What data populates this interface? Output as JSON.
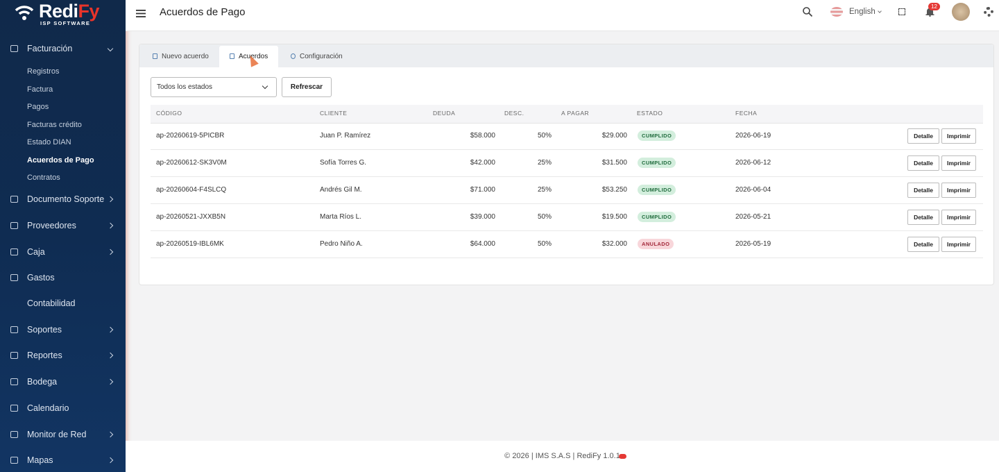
{
  "sidebar": {
    "logo": {
      "part1": "Redi",
      "part2": "Fy",
      "tagline": "ISP SOFTWARE"
    },
    "menu": [
      {
        "label": "Facturación",
        "children": [
          "Registros",
          "Factura",
          "Pagos",
          "Facturas crédito",
          "Estado DIAN",
          "Acuerdos de Pago",
          "Contratos"
        ]
      },
      {
        "label": "Documento Soporte"
      },
      {
        "label": "Proveedores"
      },
      {
        "label": "Caja"
      },
      {
        "label": "Gastos"
      },
      {
        "label": "Contabilidad"
      },
      {
        "label": "Soportes"
      },
      {
        "label": "Reportes"
      },
      {
        "label": "Bodega"
      },
      {
        "label": "Calendario"
      },
      {
        "label": "Monitor de Red"
      },
      {
        "label": "Mapas"
      }
    ]
  },
  "header": {
    "title": "Acuerdos de Pago",
    "language": "English",
    "notifications": "12"
  },
  "tabs": [
    "Nuevo acuerdo",
    "Acuerdos",
    "Configuración"
  ],
  "filters": {
    "select": "Todos los estados",
    "button": "Refrescar"
  },
  "table": {
    "columns": [
      "CÓDIGO",
      "CLIENTE",
      "DEUDA",
      "DESC.",
      "A PAGAR",
      "ESTADO",
      "FECHA"
    ],
    "rows": [
      [
        "ap-20260619-5PICBR",
        "Juan P. Ramírez",
        "$58.000",
        "50%",
        "$29.000",
        "CUMPLIDO",
        "2026-06-19"
      ],
      [
        "ap-20260612-SK3V0M",
        "Sofía Torres G.",
        "$42.000",
        "25%",
        "$31.500",
        "CUMPLIDO",
        "2026-06-12"
      ],
      [
        "ap-20260604-F4SLCQ",
        "Andrés Gil M.",
        "$71.000",
        "25%",
        "$53.250",
        "CUMPLIDO",
        "2026-06-04"
      ],
      [
        "ap-20260521-JXXB5N",
        "Marta Ríos L.",
        "$39.000",
        "50%",
        "$19.500",
        "CUMPLIDO",
        "2026-05-21"
      ],
      [
        "ap-20260519-IBL6MK",
        "Pedro Niño A.",
        "$64.000",
        "50%",
        "$32.000",
        "ANULADO",
        "2026-05-19"
      ]
    ],
    "actions": [
      "Detalle",
      "Imprimir"
    ]
  },
  "footer": "© 2026 | IMS S.A.S | RediFy 1.0.1"
}
